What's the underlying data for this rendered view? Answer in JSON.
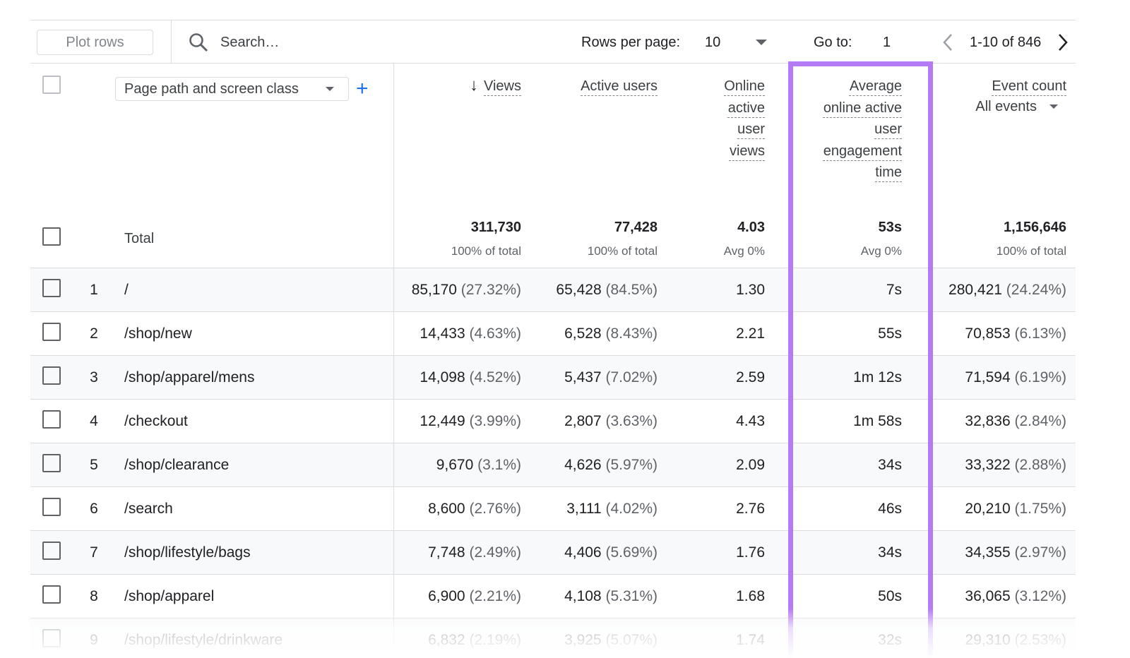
{
  "toolbar": {
    "plot_rows": "Plot rows",
    "search": "Search…",
    "rows_per_page_label": "Rows per page:",
    "rows_per_page": "10",
    "go_to_label": "Go to:",
    "go_to": "1",
    "range": "1-10 of 846"
  },
  "table": {
    "dimension": "Page path and screen class",
    "columns": [
      {
        "title": "Views",
        "total": [
          "311,730",
          "100% of total"
        ]
      },
      {
        "title": "Active users",
        "total": [
          "77,428",
          "100% of total"
        ]
      },
      {
        "title": "Online active user views",
        "total": [
          "4.03",
          "Avg 0%"
        ]
      },
      {
        "title": "Average online active user engagement time",
        "total": [
          "53s",
          "Avg 0%"
        ]
      },
      {
        "title": "Event count",
        "subtitle": "All events",
        "total": [
          "1,156,646",
          "100% of total"
        ]
      }
    ],
    "total_label": "Total",
    "rows": [
      {
        "index": 1,
        "path": "/",
        "cells": [
          [
            "85,170",
            "(27.32%)"
          ],
          [
            "65,428",
            "(84.5%)"
          ],
          [
            "1.30"
          ],
          [
            "7s"
          ],
          [
            "280,421",
            "(24.24%)"
          ]
        ]
      },
      {
        "index": 2,
        "path": "/shop/new",
        "cells": [
          [
            "14,433",
            "(4.63%)"
          ],
          [
            "6,528",
            "(8.43%)"
          ],
          [
            "2.21"
          ],
          [
            "55s"
          ],
          [
            "70,853",
            "(6.13%)"
          ]
        ]
      },
      {
        "index": 3,
        "path": "/shop/apparel/mens",
        "cells": [
          [
            "14,098",
            "(4.52%)"
          ],
          [
            "5,437",
            "(7.02%)"
          ],
          [
            "2.59"
          ],
          [
            "1m 12s"
          ],
          [
            "71,594",
            "(6.19%)"
          ]
        ]
      },
      {
        "index": 4,
        "path": "/checkout",
        "cells": [
          [
            "12,449",
            "(3.99%)"
          ],
          [
            "2,807",
            "(3.63%)"
          ],
          [
            "4.43"
          ],
          [
            "1m 58s"
          ],
          [
            "32,836",
            "(2.84%)"
          ]
        ]
      },
      {
        "index": 5,
        "path": "/shop/clearance",
        "cells": [
          [
            "9,670",
            "(3.1%)"
          ],
          [
            "4,626",
            "(5.97%)"
          ],
          [
            "2.09"
          ],
          [
            "34s"
          ],
          [
            "33,322",
            "(2.88%)"
          ]
        ]
      },
      {
        "index": 6,
        "path": "/search",
        "cells": [
          [
            "8,600",
            "(2.76%)"
          ],
          [
            "3,111",
            "(4.02%)"
          ],
          [
            "2.76"
          ],
          [
            "46s"
          ],
          [
            "20,210",
            "(1.75%)"
          ]
        ]
      },
      {
        "index": 7,
        "path": "/shop/lifestyle/bags",
        "cells": [
          [
            "7,748",
            "(2.49%)"
          ],
          [
            "4,406",
            "(5.69%)"
          ],
          [
            "1.76"
          ],
          [
            "34s"
          ],
          [
            "34,355",
            "(2.97%)"
          ]
        ]
      },
      {
        "index": 8,
        "path": "/shop/apparel",
        "cells": [
          [
            "6,900",
            "(2.21%)"
          ],
          [
            "4,108",
            "(5.31%)"
          ],
          [
            "1.68"
          ],
          [
            "50s"
          ],
          [
            "36,065",
            "(3.12%)"
          ]
        ]
      },
      {
        "index": 9,
        "path": "/shop/lifestyle/drinkware",
        "cells": [
          [
            "6,832",
            "(2.19%)"
          ],
          [
            "3,925",
            "(5.07%)"
          ],
          [
            "1.74"
          ],
          [
            "32s"
          ],
          [
            "29,310",
            "(2.53%)"
          ]
        ]
      }
    ]
  }
}
